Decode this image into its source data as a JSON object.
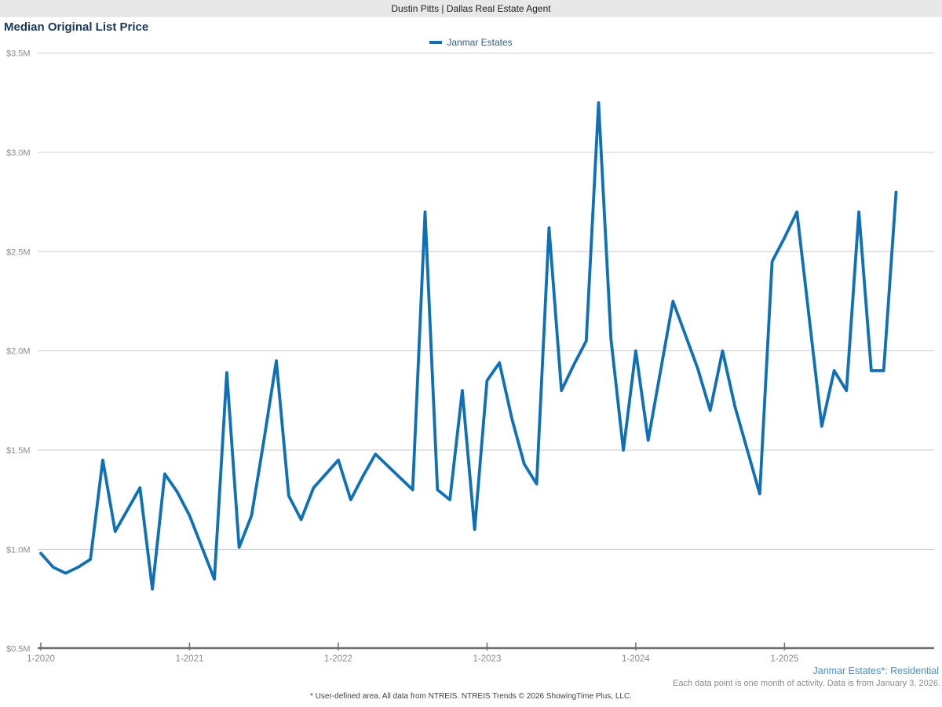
{
  "header": {
    "title": "Dustin Pitts | Dallas Real Estate Agent"
  },
  "chart": {
    "title": "Median Original List Price",
    "legend": {
      "label": "Janmar Estates"
    }
  },
  "footer": {
    "series_note": "Janmar Estates*: Residential",
    "data_note": "Each data point is one month of activity. Data is from January 3, 2026.",
    "disclaimer": "* User-defined area. All data from NTREIS. NTREIS Trends © 2026 ShowingTime Plus, LLC."
  },
  "colors": {
    "line": "#0f70b5",
    "title_text": "#17375e",
    "legend_text": "#2d5f8b",
    "series_note_text": "#4b8fc9",
    "muted_text": "#8c8c8c",
    "disclaimer_text": "#3f3f3f",
    "grid": "#cccccc",
    "axis": "#6e6e6e",
    "header_bg": "#e8e8e8"
  },
  "chart_data": {
    "type": "line",
    "title": "Median Original List Price",
    "series_name": "Janmar Estates",
    "unit": "USD millions",
    "grid": "horizontal",
    "legend_position": "top-center",
    "ylim": [
      0.5,
      3.5
    ],
    "y_tick_step": 0.5,
    "y_tick_labels": [
      "$0.5M",
      "$1.0M",
      "$1.5M",
      "$2.0M",
      "$2.5M",
      "$3.0M",
      "$3.5M"
    ],
    "x_tick_labels": [
      "1-2020",
      "1-2021",
      "1-2022",
      "1-2023",
      "1-2024",
      "1-2025"
    ],
    "x_tick_month_indices": [
      0,
      12,
      24,
      36,
      48,
      60
    ],
    "months": [
      "2020-01",
      "2020-02",
      "2020-03",
      "2020-04",
      "2020-05",
      "2020-06",
      "2020-07",
      "2020-08",
      "2020-09",
      "2020-10",
      "2020-11",
      "2020-12",
      "2021-01",
      "2021-02",
      "2021-03",
      "2021-04",
      "2021-05",
      "2021-06",
      "2021-07",
      "2021-08",
      "2021-09",
      "2021-10",
      "2021-11",
      "2021-12",
      "2022-01",
      "2022-02",
      "2022-03",
      "2022-04",
      "2022-05",
      "2022-06",
      "2022-07",
      "2022-08",
      "2022-09",
      "2022-10",
      "2022-11",
      "2022-12",
      "2023-01",
      "2023-02",
      "2023-03",
      "2023-04",
      "2023-05",
      "2023-06",
      "2023-07",
      "2023-08",
      "2023-09",
      "2023-10",
      "2023-11",
      "2023-12",
      "2024-01",
      "2024-02",
      "2024-03",
      "2024-04",
      "2024-05",
      "2024-06",
      "2024-07",
      "2024-08",
      "2024-09",
      "2024-10",
      "2024-11",
      "2024-12",
      "2025-01",
      "2025-02",
      "2025-03",
      "2025-04",
      "2025-05",
      "2025-06",
      "2025-07",
      "2025-08",
      "2025-09",
      "2025-10"
    ],
    "values": [
      0.98,
      0.91,
      0.88,
      0.91,
      0.95,
      1.45,
      1.09,
      1.2,
      1.31,
      0.8,
      1.38,
      1.29,
      1.17,
      1.01,
      0.85,
      1.89,
      1.01,
      1.17,
      1.55,
      1.95,
      1.27,
      1.15,
      1.31,
      1.38,
      1.45,
      1.25,
      1.37,
      1.48,
      1.42,
      1.36,
      1.3,
      2.7,
      1.3,
      1.25,
      1.8,
      1.1,
      1.85,
      1.94,
      1.66,
      1.43,
      1.33,
      2.62,
      1.8,
      1.93,
      2.05,
      3.25,
      2.06,
      1.5,
      2.0,
      1.55,
      1.9,
      2.25,
      2.08,
      1.91,
      1.7,
      2.0,
      1.72,
      1.5,
      1.28,
      2.45,
      2.57,
      2.7,
      2.16,
      1.62,
      1.9,
      1.8,
      2.7,
      1.9,
      1.9,
      2.8
    ]
  }
}
